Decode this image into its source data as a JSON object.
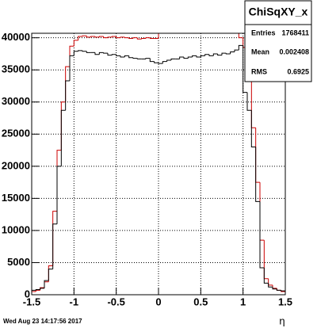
{
  "chart_data": {
    "type": "histogram",
    "x_label": "η",
    "timestamp": "Wed Aug 23 14:17:56 2017",
    "bins": [
      -1.5,
      -1.45,
      -1.4,
      -1.35,
      -1.3,
      -1.25,
      -1.2,
      -1.15,
      -1.1,
      -1.05,
      -1.0,
      -0.95,
      -0.9,
      -0.85,
      -0.8,
      -0.75,
      -0.7,
      -0.65,
      -0.6,
      -0.55,
      -0.5,
      -0.45,
      -0.4,
      -0.35,
      -0.3,
      -0.25,
      -0.2,
      -0.15,
      -0.1,
      -0.05,
      0,
      0.05,
      0.1,
      0.15,
      0.2,
      0.25,
      0.3,
      0.35,
      0.4,
      0.45,
      0.5,
      0.55,
      0.6,
      0.65,
      0.7,
      0.75,
      0.8,
      0.85,
      0.9,
      0.95,
      1.0,
      1.05,
      1.1,
      1.15,
      1.2,
      1.25,
      1.3,
      1.35,
      1.4,
      1.45,
      1.5
    ],
    "series": [
      {
        "color": "#cc0000",
        "values": [
          500,
          700,
          1100,
          2000,
          4500,
          13000,
          22500,
          30000,
          35500,
          38700,
          39600,
          40200,
          40300,
          40100,
          40200,
          40100,
          40200,
          40000,
          40100,
          40200,
          40000,
          40100,
          40000,
          39900,
          40000,
          39800,
          39900,
          40000,
          39900,
          39900,
          41000,
          40900,
          41100,
          41000,
          41000,
          41100,
          41000,
          40900,
          41000,
          41000,
          41000,
          41100,
          41000,
          41000,
          40900,
          41000,
          41100,
          41000,
          41000,
          40000,
          38500,
          34000,
          26000,
          17500,
          8500,
          2500,
          1500,
          1000,
          700,
          500
        ]
      },
      {
        "color": "#000000",
        "values": [
          700,
          800,
          1000,
          2200,
          4000,
          11000,
          20000,
          28700,
          33300,
          37200,
          37900,
          38000,
          37900,
          37700,
          37700,
          37400,
          37700,
          37600,
          37300,
          37400,
          37200,
          37000,
          37200,
          36900,
          36800,
          36700,
          36700,
          36800,
          36300,
          36100,
          36000,
          36300,
          36500,
          36700,
          36700,
          37000,
          36800,
          37000,
          37200,
          37000,
          37200,
          37400,
          37200,
          37500,
          37300,
          37600,
          37500,
          37800,
          38100,
          38800,
          31500,
          28700,
          23000,
          14500,
          4200,
          1800,
          1200,
          900,
          700,
          600
        ]
      }
    ],
    "xlim": [
      -1.5,
      1.5
    ],
    "xticks": [
      -1.5,
      -1,
      -0.5,
      0,
      0.5,
      1,
      1.5
    ],
    "ylim": [
      0,
      40700
    ],
    "yticks": [
      0,
      5000,
      10000,
      15000,
      20000,
      25000,
      30000,
      35000,
      40000
    ],
    "grid": true,
    "stats": {
      "title": "ChiSqXY_x",
      "rows": [
        {
          "label": "Entries",
          "value": 1768411
        },
        {
          "label": "Mean",
          "value": 0.002408
        },
        {
          "label": "RMS",
          "value": 0.6925
        }
      ]
    }
  }
}
